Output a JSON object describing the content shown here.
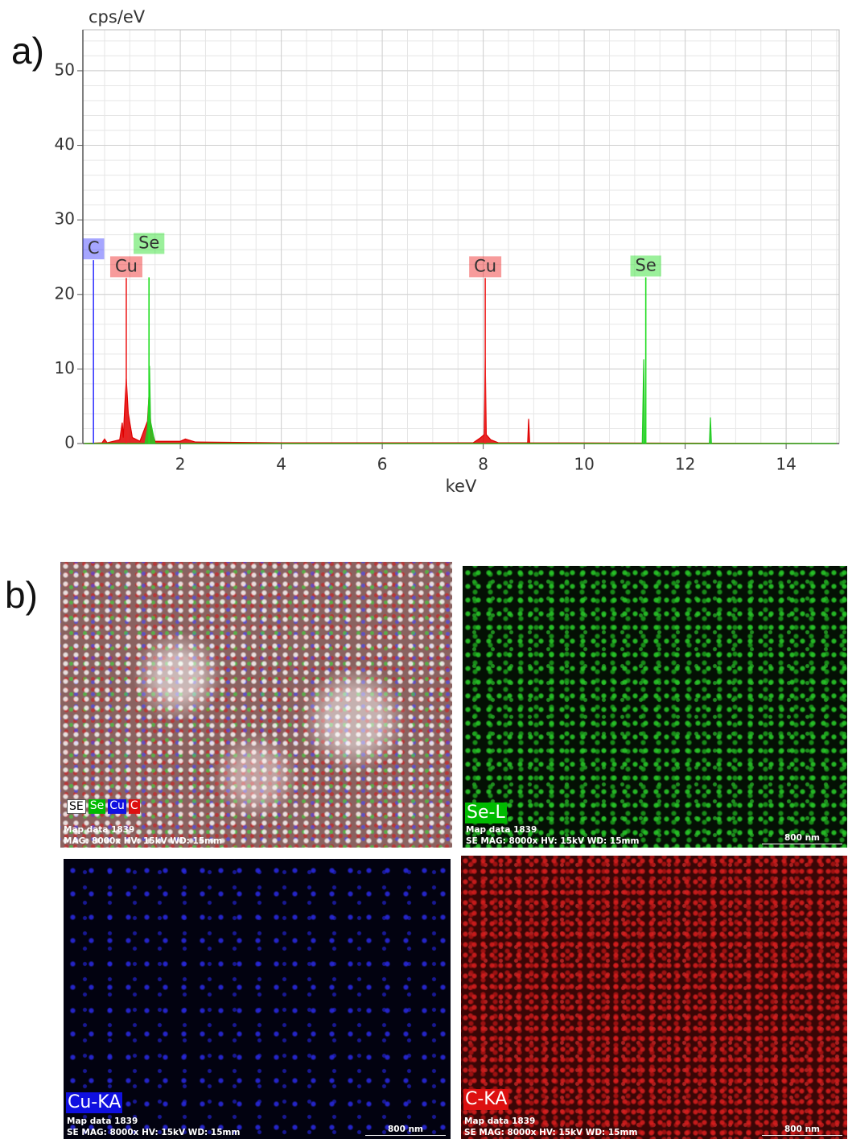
{
  "chart_data": {
    "type": "line",
    "y_label": "cps/eV",
    "x_label": "keV",
    "xlim": [
      0.07,
      15.05
    ],
    "ylim": [
      0,
      55.5
    ],
    "xticks": [
      2,
      4,
      6,
      8,
      10,
      12,
      14
    ],
    "yticks": [
      0,
      10,
      20,
      30,
      40,
      50
    ],
    "grid": true,
    "series": [
      {
        "name": "Cu",
        "color": "#e00000",
        "x": [
          0.1,
          0.45,
          0.5,
          0.55,
          0.8,
          0.85,
          0.87,
          0.9,
          0.93,
          0.97,
          1.05,
          1.2,
          1.35,
          1.38,
          1.42,
          1.5,
          2.0,
          2.1,
          2.3,
          4,
          7.8,
          7.95,
          8.02,
          8.04,
          8.06,
          8.15,
          8.3,
          8.88,
          8.9,
          8.92,
          15
        ],
        "values": [
          0,
          0.1,
          0.6,
          0.1,
          0.5,
          2.8,
          0.8,
          5,
          8.7,
          4,
          0.8,
          0.3,
          3,
          6.5,
          2,
          0.3,
          0.3,
          0.6,
          0.2,
          0.1,
          0.1,
          0.8,
          1.2,
          11.5,
          1.2,
          0.5,
          0.1,
          0.1,
          3.3,
          0.1,
          0
        ]
      },
      {
        "name": "Se",
        "color": "#22cc22",
        "x": [
          0.1,
          1.3,
          1.35,
          1.38,
          1.39,
          1.41,
          1.5,
          11.15,
          11.18,
          11.2,
          12.48,
          12.5,
          12.52,
          15
        ],
        "values": [
          0,
          0,
          2,
          6.6,
          10.4,
          3,
          0,
          0,
          11.3,
          0,
          0,
          3.5,
          0,
          0
        ]
      }
    ],
    "markers": [
      {
        "label": "C",
        "x": 0.28,
        "height": 24.6,
        "color": "#3a3aff"
      },
      {
        "label": "Cu",
        "x": 0.93,
        "height": 22.2,
        "color": "#ee2222"
      },
      {
        "label": "Se",
        "x": 1.38,
        "height": 22.3,
        "color": "#22dd22"
      },
      {
        "label": "Cu",
        "x": 8.04,
        "height": 22.2,
        "color": "#ee2222"
      },
      {
        "label": "Se",
        "x": 11.22,
        "height": 22.3,
        "color": "#22dd22"
      }
    ]
  },
  "figure": {
    "panel_a": "a)",
    "panel_b": "b)",
    "maps": [
      {
        "chips": [
          "SE",
          "Se",
          "Cu",
          "C"
        ],
        "info": [
          "Map data 1839",
          "MAG: 8000x  HV: 15kV  WD: 15mm"
        ]
      },
      {
        "label": "Se-L",
        "color": "#00bb00",
        "info": [
          "Map data 1839",
          "SE  MAG: 8000x  HV: 15kV  WD: 15mm"
        ],
        "scale": "800 nm"
      },
      {
        "label": "Cu-KA",
        "color": "#1010e0",
        "info": [
          "Map data 1839",
          "SE  MAG: 8000x  HV: 15kV  WD: 15mm"
        ],
        "scale": "800 nm"
      },
      {
        "label": "C-KA",
        "color": "#dd1010",
        "info": [
          "Map data 1839",
          "SE  MAG: 8000x  HV: 15kV  WD: 15mm"
        ],
        "scale": "800 nm"
      }
    ]
  }
}
